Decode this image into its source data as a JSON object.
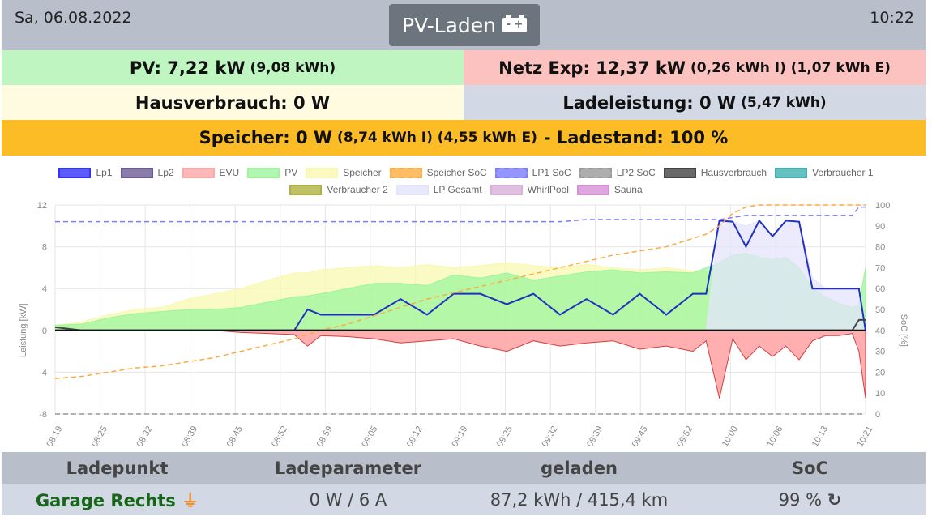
{
  "header": {
    "date": "Sa, 06.08.2022",
    "mode": "PV-Laden",
    "time": "10:22"
  },
  "summary": {
    "pv": "PV: 7,22 kW",
    "pv_sub": "(9,08 kWh)",
    "netz": "Netz Exp: 12,37 kW",
    "netz_sub": "(0,26 kWh I) (1,07 kWh E)",
    "haus": "Hausverbrauch: 0 W",
    "lade": "Ladeleistung: 0 W",
    "lade_sub": "(5,47 kWh)",
    "speicher": "Speicher: 0 W",
    "speicher_sub": "(8,74 kWh I) (4,55 kWh E)",
    "ladestand": "- Ladestand: 100 %"
  },
  "colors": {
    "pv_bg": "#bff5c1",
    "netz_bg": "#fbc2c0",
    "haus_bg": "#fffbe0",
    "lade_bg": "#d2d9e5",
    "speicher_bg": "#fcbc26"
  },
  "chart_data": {
    "type": "line",
    "ylabel": "Leistung [kW]",
    "y2label": "SoC [%]",
    "ylim": [
      -8,
      12
    ],
    "y2lim": [
      0,
      100
    ],
    "yticks": [
      12,
      8,
      4,
      0,
      -4,
      -8
    ],
    "y2ticks": [
      100,
      90,
      80,
      70,
      60,
      50,
      40,
      30,
      20,
      10,
      0
    ],
    "xticks": [
      "08:19",
      "08:25",
      "08:32",
      "08:39",
      "08:45",
      "08:52",
      "08:59",
      "09:05",
      "09:12",
      "09:19",
      "09:25",
      "09:32",
      "09:39",
      "09:45",
      "09:52",
      "10:00",
      "10:06",
      "10:13",
      "10:21"
    ],
    "x_minutes": [
      0,
      4,
      8,
      12,
      16,
      20,
      24,
      28,
      32,
      36,
      38,
      40,
      44,
      48,
      52,
      56,
      60,
      64,
      68,
      72,
      76,
      80,
      84,
      88,
      92,
      96,
      98,
      100,
      102,
      104,
      106,
      108,
      110,
      112,
      114,
      116,
      118,
      120,
      121,
      122
    ],
    "legend": [
      {
        "name": "Lp1",
        "color": "#3333ff"
      },
      {
        "name": "Lp2",
        "color": "#6b5b95"
      },
      {
        "name": "EVU",
        "color": "#ffa6a6"
      },
      {
        "name": "PV",
        "color": "#9cf59c"
      },
      {
        "name": "Speicher",
        "color": "#f8f8b0"
      },
      {
        "name": "Speicher SoC",
        "color": "#fcab40",
        "dashed": true
      },
      {
        "name": "LP1 SoC",
        "color": "#7b7bff",
        "dashed": true
      },
      {
        "name": "LP2 SoC",
        "color": "#999999",
        "dashed": true
      },
      {
        "name": "Hausverbrauch",
        "color": "#444444"
      },
      {
        "name": "Verbraucher 1",
        "color": "#40b0b0"
      },
      {
        "name": "Verbraucher 2",
        "color": "#b0b040"
      },
      {
        "name": "LP Gesamt",
        "color": "#e4e4fc"
      },
      {
        "name": "WhirlPool",
        "color": "#d8b0d8"
      },
      {
        "name": "Sauna",
        "color": "#d890d8"
      }
    ],
    "series": [
      {
        "name": "Speicher",
        "type": "area",
        "values": [
          0.5,
          0.8,
          1.5,
          2,
          2.2,
          3,
          3.5,
          4,
          4.8,
          5.5,
          5.5,
          5.8,
          6,
          6.2,
          6,
          6.3,
          6,
          6.2,
          6.5,
          6.2,
          6,
          6.3,
          6,
          5.8,
          6,
          5.7,
          5.6,
          1.5,
          0.5,
          0.3,
          0.3,
          0.3,
          0.3,
          0.2,
          0.2,
          0.2,
          0.2,
          0.2,
          0.2,
          0.2
        ]
      },
      {
        "name": "PV",
        "type": "area",
        "values": [
          0.5,
          0.6,
          1.2,
          1.6,
          1.8,
          2,
          2,
          2.2,
          2.7,
          3.2,
          3.3,
          3.5,
          4,
          4.5,
          4.5,
          4.3,
          5.3,
          5,
          5.5,
          4.8,
          5.2,
          5.6,
          5.8,
          5.5,
          5.6,
          5.5,
          6,
          6.5,
          7.2,
          7.4,
          7,
          6.8,
          7,
          6,
          4,
          3.2,
          2.6,
          2.2,
          2.5,
          6
        ]
      },
      {
        "name": "LP Gesamt",
        "type": "area",
        "values": [
          0,
          0,
          0,
          0,
          0,
          0,
          0,
          0,
          0,
          0,
          0,
          0,
          0,
          0,
          0,
          0,
          0,
          0,
          0,
          0,
          0,
          0,
          0,
          0,
          0,
          0,
          0,
          10.5,
          10.4,
          10,
          10.5,
          9,
          10.5,
          10.4,
          5,
          4,
          4,
          4,
          4,
          0
        ]
      },
      {
        "name": "EVU",
        "type": "area",
        "values": [
          0,
          0,
          0,
          0,
          0,
          0,
          0,
          -0.2,
          -0.3,
          -0.4,
          -1.5,
          -0.5,
          -0.6,
          -0.8,
          -1.2,
          -1,
          -0.8,
          -1.5,
          -2,
          -1,
          -1.5,
          -1.2,
          -1,
          -1.8,
          -1.5,
          -2,
          -1,
          -6.5,
          -0.8,
          -2.8,
          -1.5,
          -2.5,
          -1.5,
          -2.8,
          -1,
          -0.5,
          -0.5,
          -0.3,
          -2,
          -6.5
        ]
      },
      {
        "name": "Lp1",
        "type": "line",
        "values": [
          0,
          0,
          0,
          0,
          0,
          0,
          0,
          0,
          0,
          0,
          2,
          1.5,
          1.5,
          1.5,
          3,
          1.5,
          3.5,
          3.5,
          2.5,
          3.5,
          1.5,
          3,
          1.5,
          3.5,
          1.5,
          3.5,
          3.5,
          10.5,
          10.4,
          8,
          10.5,
          9,
          10.5,
          10.4,
          4,
          4,
          4,
          4,
          4,
          0
        ]
      },
      {
        "name": "Hausverbrauch",
        "type": "line",
        "values": [
          0.3,
          0,
          0,
          0,
          0,
          0,
          0,
          0,
          0,
          0,
          0,
          0,
          0,
          0,
          0,
          0,
          0,
          0,
          0,
          0,
          0,
          0,
          0,
          0,
          0,
          0,
          0,
          0,
          0,
          0,
          0,
          0,
          0,
          0,
          0,
          0,
          0,
          0,
          1,
          1
        ]
      },
      {
        "name": "Speicher SoC",
        "type": "soc",
        "values": [
          17,
          18,
          20,
          22,
          23,
          25,
          27,
          30,
          33,
          36,
          38,
          40,
          43,
          47,
          51,
          55,
          58,
          61,
          64,
          67,
          70,
          73,
          76,
          78,
          80,
          84,
          86,
          90,
          96,
          99,
          100,
          100,
          100,
          100,
          100,
          100,
          100,
          100,
          100,
          100
        ]
      },
      {
        "name": "LP1 SoC",
        "type": "soc",
        "values": [
          92,
          92,
          92,
          92,
          92,
          92,
          92,
          92,
          92,
          92,
          92,
          92,
          92,
          92,
          92,
          92,
          92,
          92,
          92,
          92,
          92,
          93,
          93,
          93,
          93,
          93,
          93,
          93,
          94,
          95,
          95,
          95,
          95,
          95,
          95,
          95,
          95,
          95,
          99,
          99
        ]
      },
      {
        "name": "LP2 SoC",
        "type": "soc",
        "values": [
          0,
          0,
          0,
          0,
          0,
          0,
          0,
          0,
          0,
          0,
          0,
          0,
          0,
          0,
          0,
          0,
          0,
          0,
          0,
          0,
          0,
          0,
          0,
          0,
          0,
          0,
          0,
          0,
          0,
          0,
          0,
          0,
          0,
          0,
          0,
          0,
          0,
          0,
          0,
          0
        ]
      }
    ]
  },
  "table": {
    "headers": [
      "Ladepunkt",
      "Ladeparameter",
      "geladen",
      "SoC"
    ],
    "row": {
      "name": "Garage Rechts",
      "param": "0 W / 6 A",
      "geladen": "87,2 kWh / 415,4 km",
      "soc": "99 %"
    }
  }
}
